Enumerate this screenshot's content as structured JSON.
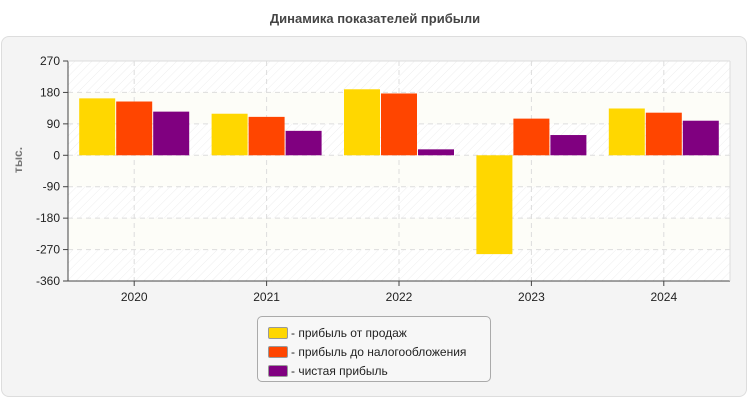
{
  "chart_data": {
    "type": "bar",
    "title": "Динамика показателей прибыли",
    "xlabel": "",
    "ylabel": "тыс.",
    "categories": [
      "2020",
      "2021",
      "2022",
      "2023",
      "2024"
    ],
    "ylim": [
      -360,
      270
    ],
    "yticks": [
      270,
      180,
      90,
      0,
      -90,
      -180,
      -270,
      -360
    ],
    "grid": true,
    "legend_position": "bottom",
    "series": [
      {
        "name": "- прибыль от продаж",
        "color": "#FFD700",
        "values": [
          163,
          119,
          189,
          -283,
          134
        ]
      },
      {
        "name": "- прибыль до налогообложения",
        "color": "#FF4500",
        "values": [
          154,
          110,
          177,
          105,
          122
        ]
      },
      {
        "name": "- чистая прибыль",
        "color": "#800080",
        "values": [
          125,
          70,
          17,
          58,
          99
        ]
      }
    ]
  }
}
